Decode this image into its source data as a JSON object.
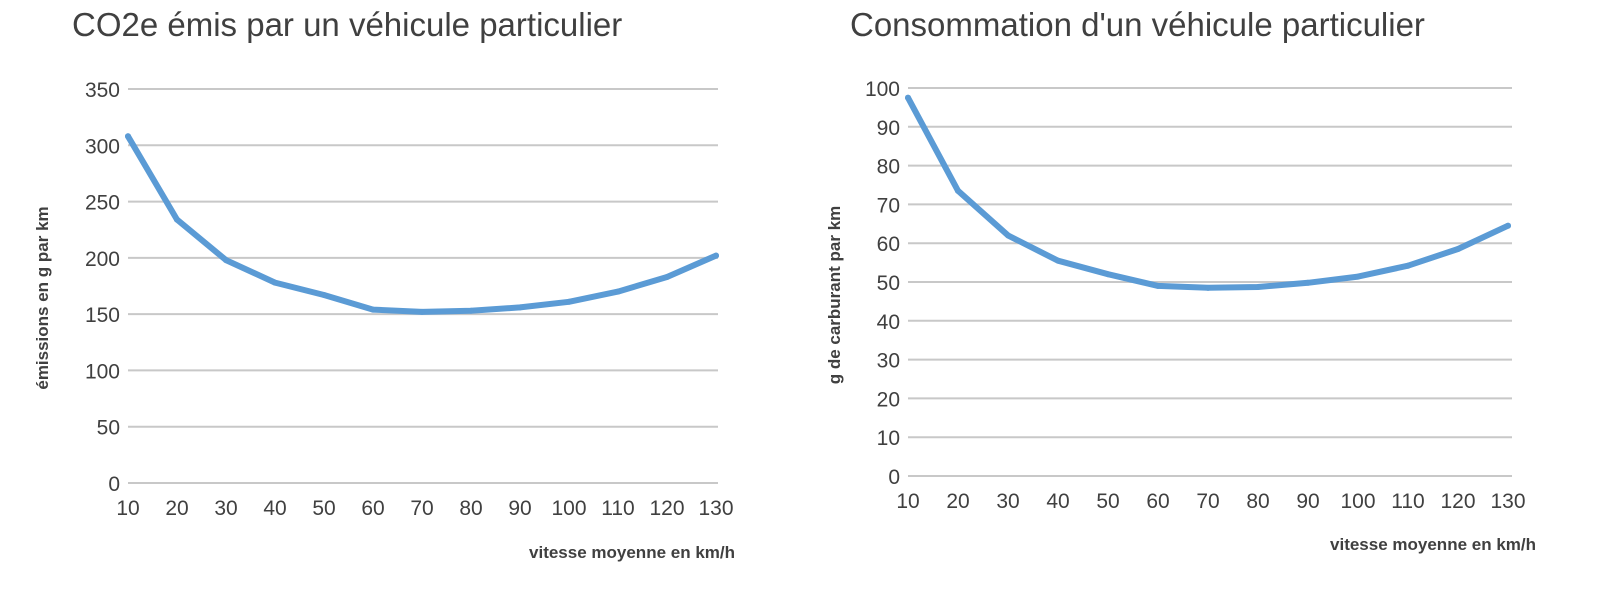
{
  "chart_data": [
    {
      "type": "line",
      "title": "CO2e émis par un véhicule particulier",
      "xlabel": "vitesse moyenne en km/h",
      "ylabel": "émissions en g par km",
      "categories": [
        "10",
        "20",
        "30",
        "40",
        "50",
        "60",
        "70",
        "80",
        "90",
        "100",
        "110",
        "120",
        "130"
      ],
      "series": [
        {
          "values": [
            308,
            234,
            198,
            178,
            167,
            154,
            152,
            153,
            156,
            161,
            170,
            183,
            202
          ]
        }
      ],
      "ylim": [
        0,
        350
      ],
      "yticks": [
        "0",
        "50",
        "100",
        "150",
        "200",
        "250",
        "300",
        "350"
      ],
      "grid": true,
      "legend": "none",
      "colors": {
        "line": "#5b9bd5",
        "grid": "#c8c8c8",
        "text": "#404040"
      }
    },
    {
      "type": "line",
      "title": "Consommation d'un véhicule particulier",
      "xlabel": "vitesse moyenne en km/h",
      "ylabel": "g de carburant par km",
      "categories": [
        "10",
        "20",
        "30",
        "40",
        "50",
        "60",
        "70",
        "80",
        "90",
        "100",
        "110",
        "120",
        "130"
      ],
      "series": [
        {
          "values": [
            97.5,
            73.5,
            62,
            55.5,
            52,
            49,
            48.5,
            48.7,
            49.8,
            51.4,
            54.2,
            58.5,
            64.5
          ]
        }
      ],
      "ylim": [
        0,
        100
      ],
      "yticks": [
        "0",
        "10",
        "20",
        "30",
        "40",
        "50",
        "60",
        "70",
        "80",
        "90",
        "100"
      ],
      "grid": true,
      "legend": "none",
      "colors": {
        "line": "#5b9bd5",
        "grid": "#c8c8c8",
        "text": "#404040"
      }
    }
  ]
}
